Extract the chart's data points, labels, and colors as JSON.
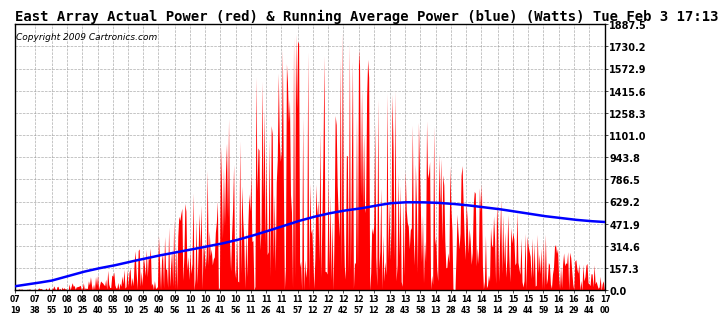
{
  "title": "East Array Actual Power (red) & Running Average Power (blue) (Watts) Tue Feb 3 17:13",
  "copyright_text": "Copyright 2009 Cartronics.com",
  "yticks": [
    0.0,
    157.3,
    314.6,
    471.9,
    629.2,
    786.5,
    943.8,
    1101.0,
    1258.3,
    1415.6,
    1572.9,
    1730.2,
    1887.5
  ],
  "ymax": 1887.5,
  "ymin": 0.0,
  "bar_color": "#FF0000",
  "avg_color": "#0000FF",
  "background_color": "#FFFFFF",
  "grid_color": "#999999",
  "title_fontsize": 10,
  "copyright_fontsize": 6.5,
  "xtick_labels": [
    "07:19",
    "07:38",
    "07:55",
    "08:10",
    "08:25",
    "08:40",
    "08:55",
    "09:10",
    "09:25",
    "09:40",
    "09:56",
    "10:11",
    "10:26",
    "10:41",
    "10:56",
    "11:11",
    "11:26",
    "11:41",
    "11:57",
    "12:12",
    "12:27",
    "12:42",
    "12:57",
    "13:12",
    "13:28",
    "13:43",
    "13:58",
    "14:13",
    "14:28",
    "14:43",
    "14:58",
    "15:14",
    "15:29",
    "15:44",
    "15:59",
    "16:14",
    "16:29",
    "16:44",
    "17:00"
  ],
  "avg_waypoints_min": [
    439,
    458,
    475,
    490,
    505,
    520,
    535,
    550,
    566,
    581,
    596,
    611,
    626,
    641,
    656,
    671,
    687,
    702,
    717,
    732,
    747,
    762,
    778,
    793,
    808,
    823,
    838,
    853,
    868,
    883,
    898,
    914,
    929,
    944,
    959,
    974,
    989,
    1004,
    1020
  ],
  "avg_waypoints_val": [
    30,
    50,
    70,
    100,
    130,
    155,
    175,
    200,
    225,
    248,
    268,
    288,
    310,
    330,
    355,
    385,
    420,
    455,
    490,
    520,
    545,
    565,
    580,
    600,
    618,
    625,
    625,
    622,
    615,
    605,
    592,
    578,
    562,
    545,
    528,
    515,
    502,
    492,
    485
  ]
}
